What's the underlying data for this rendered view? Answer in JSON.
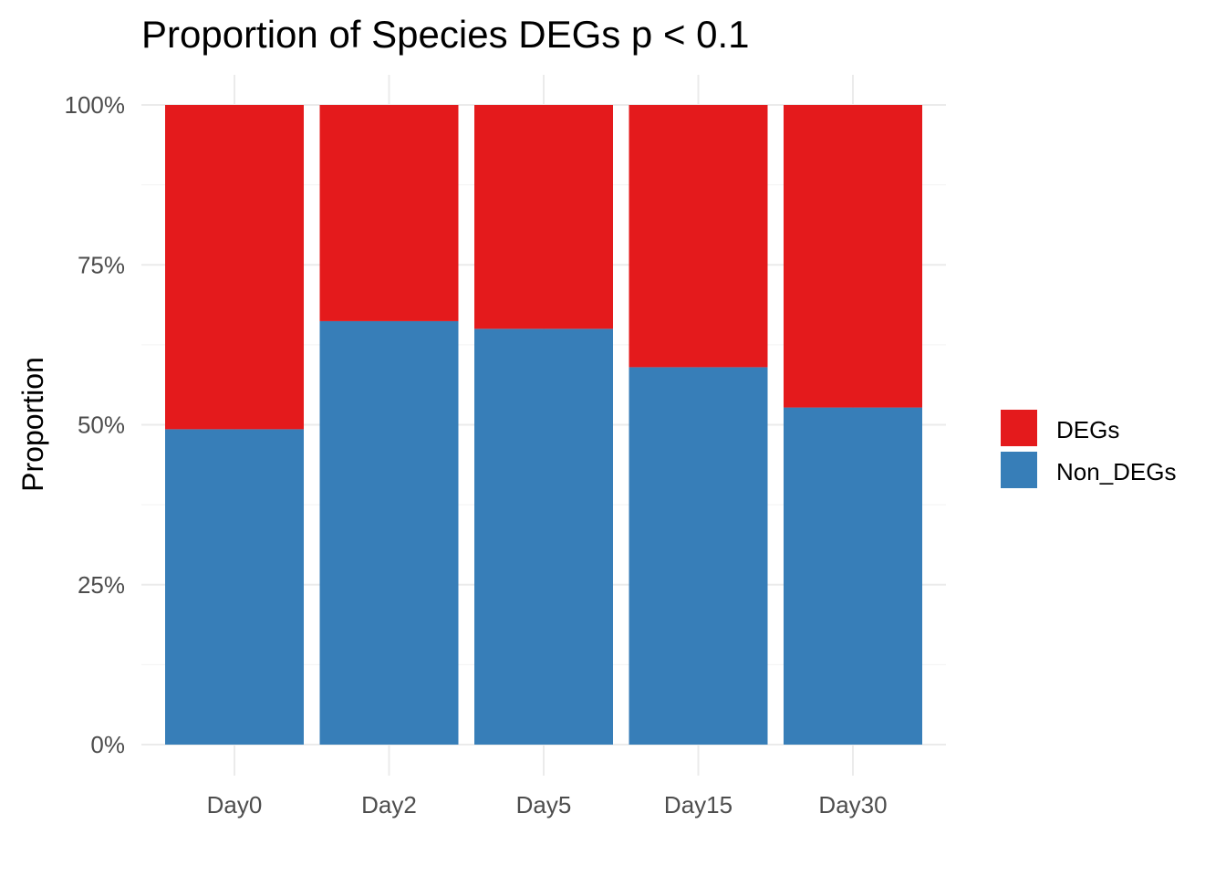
{
  "chart_data": {
    "type": "bar",
    "stacked": true,
    "title": "Proportion of Species DEGs p < 0.1",
    "xlabel": "",
    "ylabel": "Proportion",
    "categories": [
      "Day0",
      "Day2",
      "Day5",
      "Day15",
      "Day30"
    ],
    "series": [
      {
        "name": "Non_DEGs",
        "color": "#377EB8",
        "values": [
          0.493,
          0.662,
          0.65,
          0.59,
          0.527
        ]
      },
      {
        "name": "DEGs",
        "color": "#E41A1C",
        "values": [
          0.507,
          0.338,
          0.35,
          0.41,
          0.473
        ]
      }
    ],
    "ylim": [
      0,
      1
    ],
    "yticks": [
      0,
      0.25,
      0.5,
      0.75,
      1.0
    ],
    "ytick_labels": [
      "0%",
      "25%",
      "50%",
      "75%",
      "100%"
    ],
    "legend": {
      "position": "right",
      "entries": [
        {
          "label": "DEGs",
          "color": "#E41A1C"
        },
        {
          "label": "Non_DEGs",
          "color": "#377EB8"
        }
      ]
    },
    "grid": true
  }
}
